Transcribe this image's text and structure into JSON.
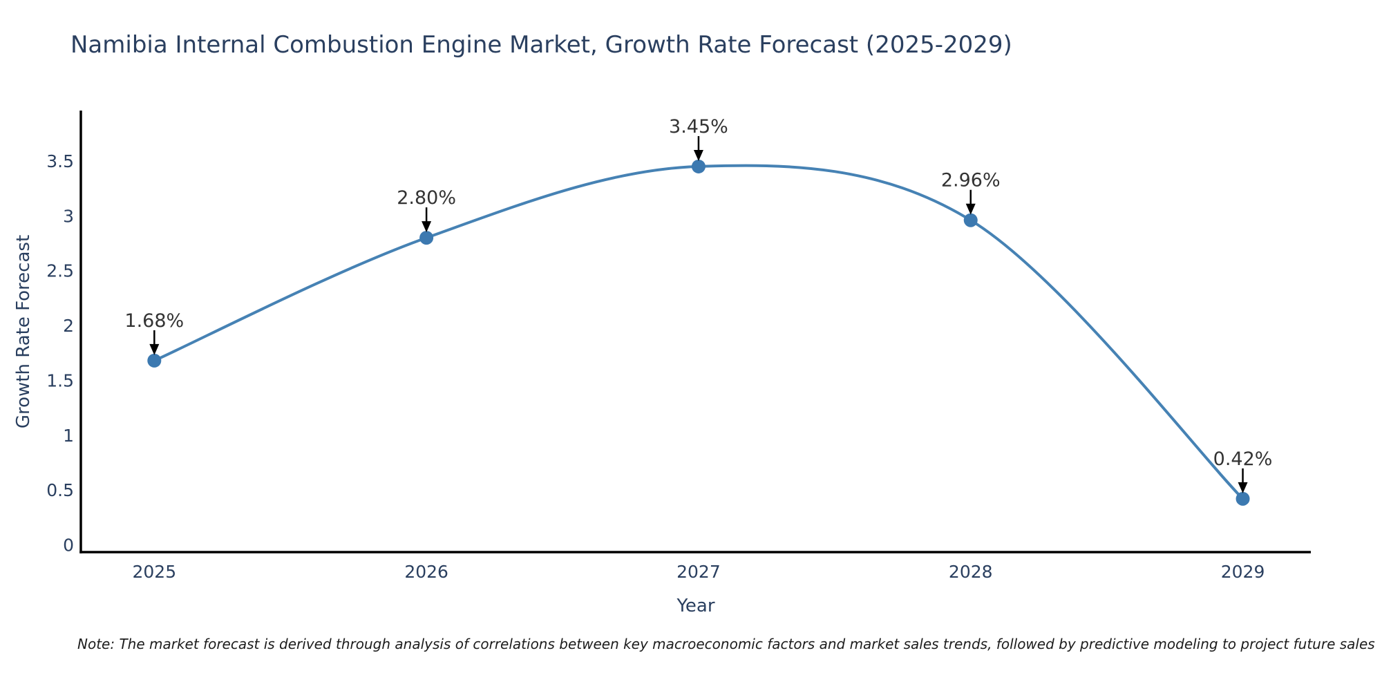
{
  "chart_data": {
    "type": "line",
    "title": "Namibia Internal Combustion Engine Market, Growth Rate Forecast (2025-2029)",
    "xlabel": "Year",
    "ylabel": "Growth Rate Forecast",
    "x": [
      2025,
      2026,
      2027,
      2028,
      2029
    ],
    "series": [
      {
        "name": "Growth Rate Forecast",
        "values": [
          1.68,
          2.8,
          3.45,
          2.96,
          0.42
        ]
      }
    ],
    "point_labels": [
      "1.68%",
      "2.80%",
      "3.45%",
      "2.96%",
      "0.42%"
    ],
    "xtick_labels": [
      "2025",
      "2026",
      "2027",
      "2028",
      "2029"
    ],
    "ytick_values": [
      0,
      0.5,
      1,
      1.5,
      2,
      2.5,
      3,
      3.5
    ],
    "ytick_labels": [
      "0",
      "0.5",
      "1",
      "1.5",
      "2",
      "2.5",
      "3",
      "3.5"
    ],
    "xlim": [
      2024.73,
      2029.25
    ],
    "ylim": [
      -0.066,
      3.96
    ],
    "grid": false,
    "legend": "none",
    "line_color": "#4682b4",
    "marker_color": "#3c79b0",
    "axis_color": "#000000",
    "arrow_color": "#000000",
    "text_color": "#2a3f5f",
    "annotation_color": "#333333",
    "note": "Note: The market forecast is derived through analysis of correlations between key macroeconomic factors and market sales trends, followed by predictive modeling to project future sales"
  }
}
